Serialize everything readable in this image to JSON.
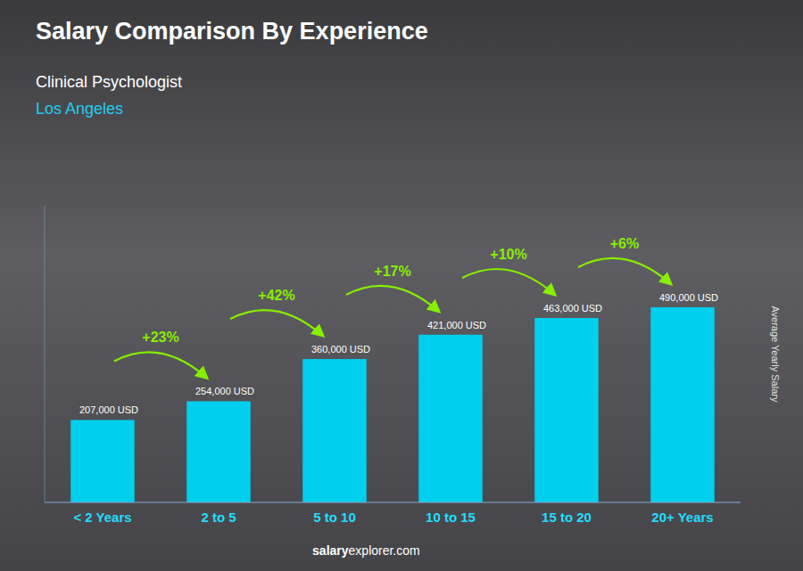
{
  "chart_data": {
    "type": "bar",
    "title": "Salary Comparison By Experience",
    "subtitle": [
      "Clinical Psychologist",
      "Los Angeles"
    ],
    "y_label": "Average Yearly Salary",
    "footer": [
      "salary",
      "explorer.com"
    ],
    "categories": [
      "< 2 Years",
      "2 to 5",
      "5 to 10",
      "10 to 15",
      "15 to 20",
      "20+ Years"
    ],
    "values": [
      207000,
      254000,
      360000,
      421000,
      463000,
      490000
    ],
    "value_labels": [
      "207,000 USD",
      "254,000 USD",
      "360,000 USD",
      "421,000 USD",
      "463,000 USD",
      "490,000 USD"
    ],
    "data_labels": true,
    "annotations": [
      "+23%",
      "+42%",
      "+17%",
      "+10%",
      "+6%"
    ],
    "color": "#00CFEE",
    "ylim": [
      0,
      744800
    ],
    "grid": false,
    "tick_labels": "x"
  }
}
